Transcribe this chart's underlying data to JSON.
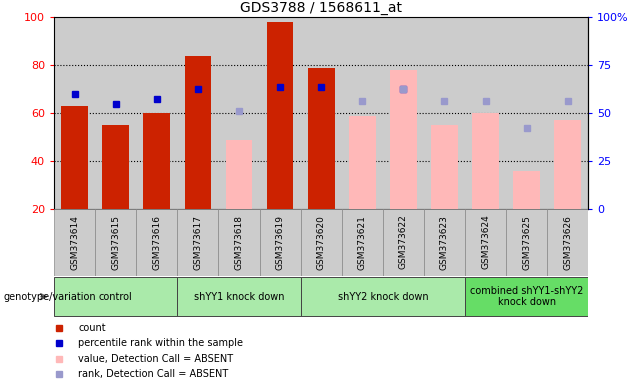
{
  "title": "GDS3788 / 1568611_at",
  "samples": [
    "GSM373614",
    "GSM373615",
    "GSM373616",
    "GSM373617",
    "GSM373618",
    "GSM373619",
    "GSM373620",
    "GSM373621",
    "GSM373622",
    "GSM373623",
    "GSM373624",
    "GSM373625",
    "GSM373626"
  ],
  "red_bars": [
    63,
    55,
    60,
    84,
    null,
    98,
    79,
    null,
    null,
    null,
    null,
    null,
    null
  ],
  "pink_bars": [
    null,
    null,
    null,
    null,
    49,
    null,
    null,
    59,
    78,
    55,
    60,
    36,
    57
  ],
  "blue_squares": [
    68,
    64,
    66,
    70,
    null,
    71,
    71,
    null,
    70,
    null,
    null,
    null,
    null
  ],
  "lightblue_squares": [
    null,
    null,
    null,
    null,
    61,
    null,
    null,
    65,
    70,
    65,
    65,
    54,
    65
  ],
  "ylim_left": [
    20,
    100
  ],
  "left_ticks": [
    20,
    40,
    60,
    80,
    100
  ],
  "right_ticks_pos": [
    20,
    40,
    60,
    80,
    100
  ],
  "right_tick_labels": [
    "0",
    "25",
    "50",
    "75",
    "100%"
  ],
  "group_boundaries": [
    {
      "label": "control",
      "start": 0,
      "end": 2,
      "color": "#aaeaaa"
    },
    {
      "label": "shYY1 knock down",
      "start": 3,
      "end": 5,
      "color": "#aaeaaa"
    },
    {
      "label": "shYY2 knock down",
      "start": 6,
      "end": 9,
      "color": "#aaeaaa"
    },
    {
      "label": "combined shYY1-shYY2\nknock down",
      "start": 10,
      "end": 12,
      "color": "#66dd66"
    }
  ],
  "red_bar_color": "#cc2200",
  "pink_bar_color": "#ffb8b8",
  "blue_sq_color": "#0000cc",
  "lightblue_sq_color": "#9999cc",
  "plot_bg": "#cccccc",
  "sample_bg": "#cccccc",
  "genotype_label": "genotype/variation"
}
